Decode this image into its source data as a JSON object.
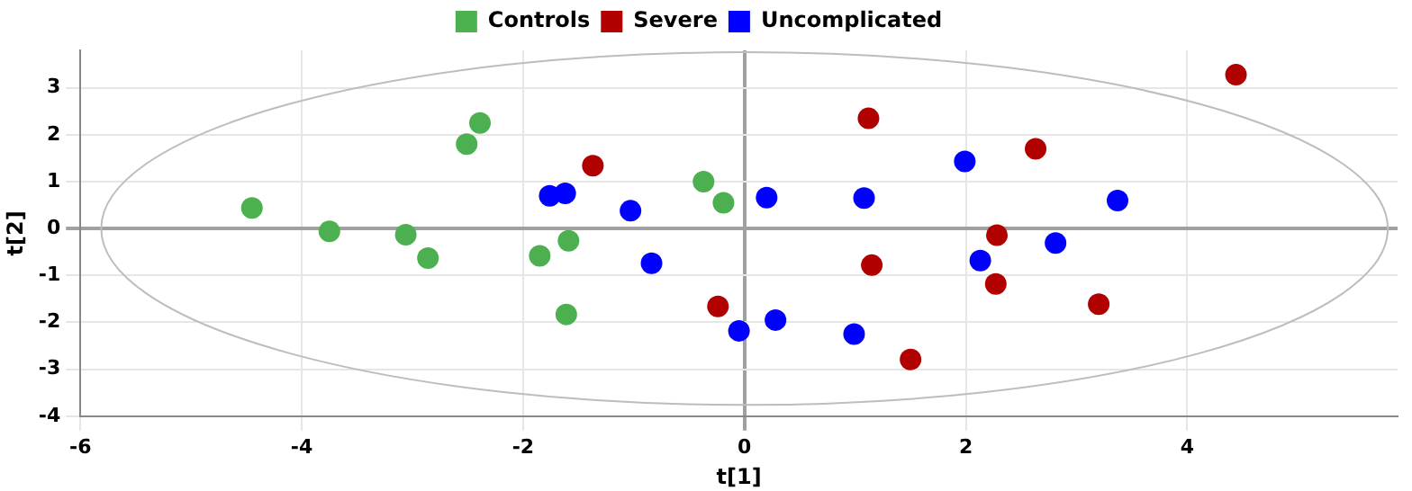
{
  "chart_data": {
    "type": "scatter",
    "xlabel": "t[1]",
    "ylabel": "t[2]",
    "xlim": [
      -6,
      5.9
    ],
    "ylim": [
      -4,
      3.8
    ],
    "xticks": [
      -6,
      -4,
      -2,
      0,
      2,
      4
    ],
    "yticks": [
      -4,
      -3,
      -2,
      -1,
      0,
      1,
      2,
      3
    ],
    "grid": true,
    "legend": "top",
    "marker": "circle",
    "series": [
      {
        "name": "Controls",
        "color": "#4caf50",
        "x": [
          -4.45,
          -3.75,
          -3.06,
          -2.86,
          -2.51,
          -2.39,
          -1.85,
          -1.59,
          -1.61,
          -0.37,
          -0.19
        ],
        "values": [
          0.44,
          -0.06,
          -0.13,
          -0.63,
          1.8,
          2.25,
          -0.58,
          -0.26,
          -1.83,
          1.0,
          0.55
        ]
      },
      {
        "name": "Severe",
        "color": "#b00000",
        "x": [
          -1.37,
          -0.24,
          1.12,
          2.63,
          4.44,
          2.28,
          1.15,
          2.27,
          3.2,
          1.5
        ],
        "values": [
          1.34,
          -1.66,
          2.35,
          1.7,
          3.28,
          -0.14,
          -0.78,
          -1.18,
          -1.61,
          -2.79
        ]
      },
      {
        "name": "Uncomplicated",
        "color": "#0000ff",
        "x": [
          -1.76,
          -1.62,
          -1.03,
          -0.84,
          0.2,
          1.08,
          1.99,
          3.37,
          2.81,
          2.13,
          -0.05,
          0.28,
          0.99
        ],
        "values": [
          0.7,
          0.75,
          0.38,
          -0.74,
          0.66,
          0.65,
          1.43,
          0.6,
          -0.31,
          -0.68,
          -2.18,
          -1.95,
          -2.25
        ]
      }
    ]
  }
}
